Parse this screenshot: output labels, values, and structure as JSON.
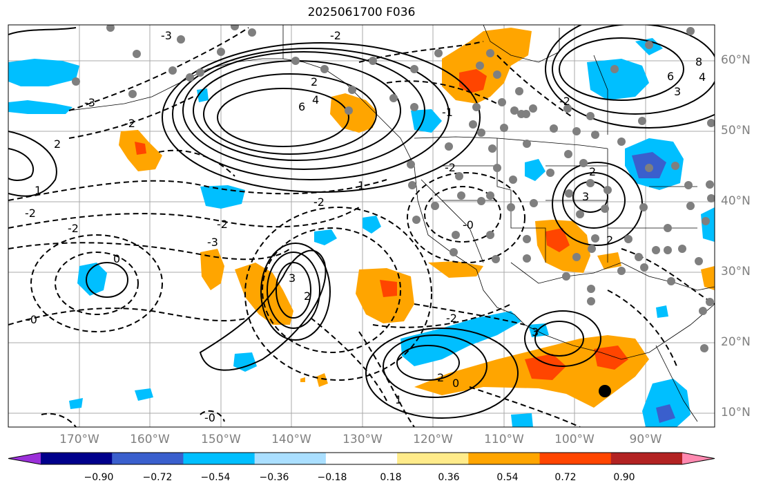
{
  "title": "2025061700 F036",
  "map": {
    "lat_labels": [
      "60°N",
      "50°N",
      "40°N",
      "30°N",
      "20°N",
      "10°N"
    ],
    "lon_labels": [
      "170°W",
      "160°W",
      "150°W",
      "140°W",
      "130°W",
      "120°W",
      "110°W",
      "100°W",
      "90°W"
    ],
    "contour_labels_solid": [
      "6",
      "4",
      "2",
      "3",
      "2",
      "1",
      "0",
      "8",
      "6",
      "4",
      "3",
      "2",
      "3",
      "2",
      "3",
      "2",
      "1",
      "2",
      "0",
      "1"
    ],
    "contour_labels_dashed": [
      "-2",
      "-2",
      "-3",
      "-2",
      "-2",
      "-3",
      "-2",
      "-2",
      "-1",
      "-2",
      "-0",
      "-0",
      "-2",
      "-3",
      "-2",
      "-0"
    ],
    "marker": "black-dot"
  },
  "colorbar": {
    "colors": [
      "#9b30d9",
      "#00008b",
      "#3a5fcd",
      "#00bfff",
      "#aadfff",
      "#ffffff",
      "#ffeb8a",
      "#ffa500",
      "#ff4500",
      "#b22222",
      "#ff89b0"
    ],
    "tick_labels": [
      "−0.90",
      "−0.72",
      "−0.54",
      "−0.36",
      "−0.18",
      "0.18",
      "0.36",
      "0.54",
      "0.72",
      "0.90"
    ]
  }
}
